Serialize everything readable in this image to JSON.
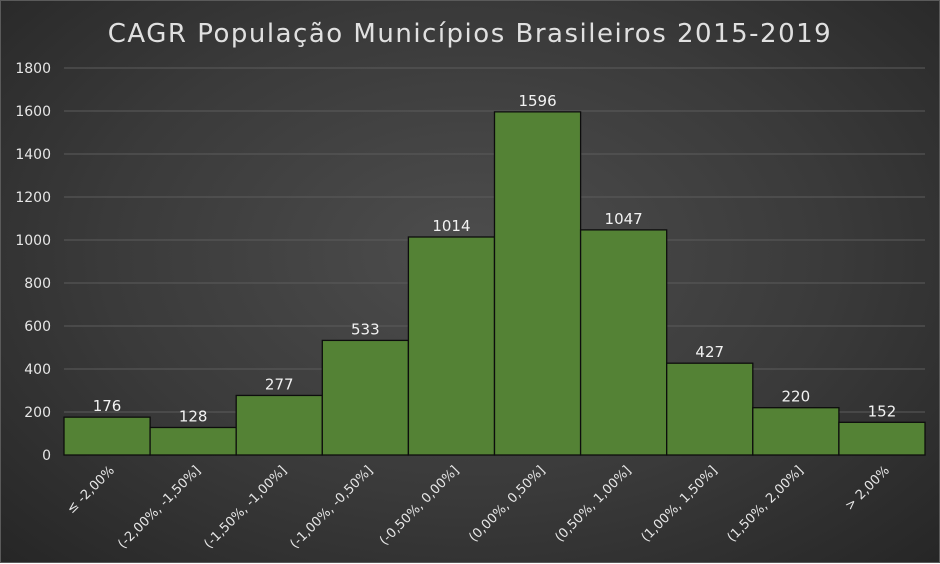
{
  "chart_data": {
    "type": "bar",
    "title": "CAGR População Municípios Brasileiros 2015-2019",
    "categories": [
      "≤ -2,00%",
      "(-2,00%, -1,50%]",
      "(-1,50%, -1,00%]",
      "(-1,00%, -0,50%]",
      "(-0,50%, 0,00%]",
      "(0,00%, 0,50%]",
      "(0,50%, 1,00%]",
      "(1,00%, 1,50%]",
      "(1,50%, 2,00%]",
      "> 2,00%"
    ],
    "values": [
      176,
      128,
      277,
      533,
      1014,
      1596,
      1047,
      427,
      220,
      152
    ],
    "data_labels": [
      "176",
      "128",
      "277",
      "533",
      "1014",
      "1596",
      "1047",
      "427",
      "220",
      "152"
    ],
    "yticks": [
      "0",
      "200",
      "400",
      "600",
      "800",
      "1000",
      "1200",
      "1400",
      "1600",
      "1800"
    ],
    "ylim": [
      0,
      1800
    ],
    "xlabel": "",
    "ylabel": "",
    "grid": true,
    "legend": "none",
    "colors": {
      "bar": "#548235",
      "bar_edge": "#0d0d0d",
      "gridline": "#5c5c5c",
      "text": "#e6e6e6"
    }
  }
}
